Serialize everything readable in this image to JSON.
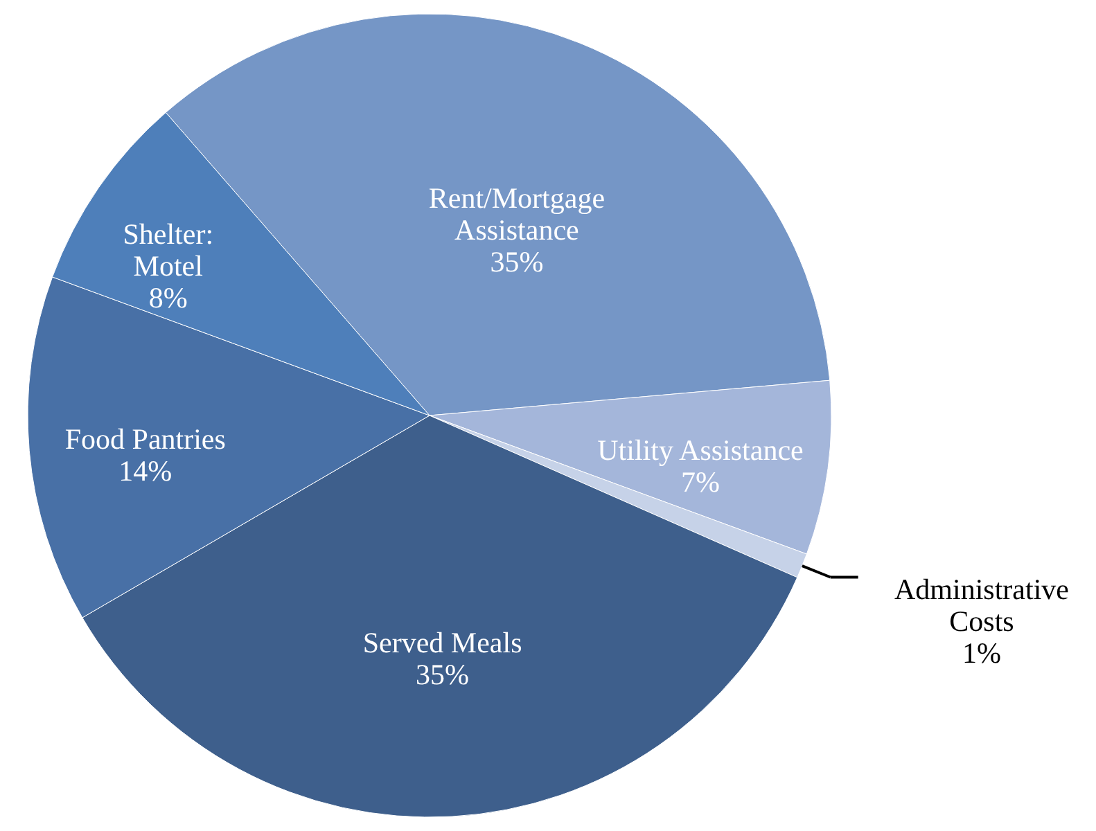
{
  "chart_data": {
    "type": "pie",
    "categories": [
      "Rent/Mortgage Assistance",
      "Utility Assistance",
      "Administrative Costs",
      "Served Meals",
      "Food Pantries",
      "Shelter: Motel"
    ],
    "values": [
      35,
      7,
      1,
      35,
      14,
      8
    ],
    "value_labels": [
      "35%",
      "7%",
      "1%",
      "35%",
      "14%",
      "8%"
    ],
    "colors": [
      "#7596c6",
      "#a4b6da",
      "#c6d2e8",
      "#3e5f8c",
      "#4870a6",
      "#4e7fba"
    ]
  }
}
